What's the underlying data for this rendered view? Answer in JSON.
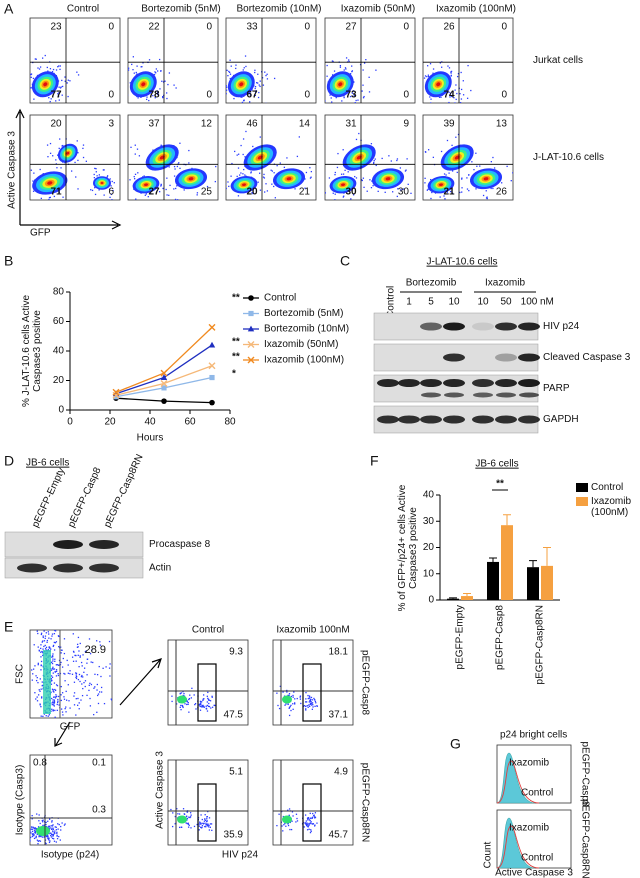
{
  "panel_letters": [
    "A",
    "B",
    "C",
    "D",
    "E",
    "F",
    "G"
  ],
  "panel_a": {
    "columns": [
      "Control",
      "Bortezomib (5nM)",
      "Bortezomib (10nM)",
      "Ixazomib (50nM)",
      "Ixazomib (100nM)"
    ],
    "rows": [
      {
        "label": "Jurkat cells",
        "quadrants": [
          [
            23,
            0,
            77,
            0
          ],
          [
            22,
            0,
            78,
            0
          ],
          [
            33,
            0,
            67,
            0
          ],
          [
            27,
            0,
            73,
            0
          ],
          [
            26,
            0,
            74,
            0
          ]
        ]
      },
      {
        "label": "J-LAT-10.6 cells",
        "quadrants": [
          [
            20,
            3,
            71,
            6
          ],
          [
            37,
            12,
            27,
            25
          ],
          [
            46,
            14,
            20,
            21
          ],
          [
            31,
            9,
            30,
            30
          ],
          [
            39,
            13,
            21,
            26
          ]
        ]
      }
    ],
    "y_axis_label": "Active Caspase 3",
    "x_axis_label": "GFP"
  },
  "chart_data": [
    {
      "type": "line",
      "y_label": "% J-LAT-10.6 cells Active Caspase3 positive",
      "x_label": "Hours",
      "x": [
        23,
        47,
        71
      ],
      "xlim": [
        0,
        80
      ],
      "xticks": [
        0,
        20,
        40,
        60,
        80
      ],
      "ylim": [
        0,
        80
      ],
      "yticks": [
        0,
        20,
        40,
        60,
        80
      ],
      "series": [
        {
          "name": "Control",
          "color": "#000000",
          "marker": "circle",
          "values": [
            8,
            6,
            5
          ]
        },
        {
          "name": "Bortezomib (5nM)",
          "color": "#8fb8e8",
          "marker": "square",
          "values": [
            9,
            15,
            22
          ]
        },
        {
          "name": "Bortezomib (10nM)",
          "color": "#1f2fc0",
          "marker": "triangle",
          "values": [
            11,
            22,
            44
          ]
        },
        {
          "name": "Ixazomib (50nM)",
          "color": "#f5b878",
          "marker": "cross",
          "values": [
            10,
            18,
            30
          ]
        },
        {
          "name": "Ixazomib (100nM)",
          "color": "#f08a20",
          "marker": "cross",
          "values": [
            12,
            25,
            56
          ]
        }
      ],
      "annotations": [
        "**",
        "**",
        "**",
        "*"
      ]
    },
    {
      "type": "bar",
      "title": "JB-6 cells",
      "y_label": "% of GFP+/p24+ cells Active Caspase3 positive",
      "categories": [
        "pEGFP-Empty",
        "pEGFP-Casp8",
        "pEGFP-Casp8RN"
      ],
      "ylim": [
        0,
        40
      ],
      "yticks": [
        0,
        10,
        20,
        30,
        40
      ],
      "series": [
        {
          "name": "Control",
          "color": "#000000",
          "values": [
            0.5,
            14.5,
            12.5
          ],
          "errors": [
            0.3,
            1.5,
            2.5
          ]
        },
        {
          "name": "Ixazomib (100nM)",
          "color": "#f5a040",
          "values": [
            1.5,
            28.5,
            13
          ],
          "errors": [
            1,
            4,
            7
          ]
        }
      ],
      "annotation": "**"
    }
  ],
  "panel_c": {
    "title": "J-LAT-10.6 cells",
    "control": "Control",
    "groups": [
      "Bortezomib",
      "Ixazomib"
    ],
    "lanes": [
      "1",
      "5",
      "10",
      "10",
      "50",
      "100"
    ],
    "unit": "nM",
    "bands": [
      "HIV p24",
      "Cleaved Caspase 3",
      "PARP",
      "GAPDH"
    ]
  },
  "panel_d": {
    "title": "JB-6 cells",
    "lanes": [
      "pEGFP-Empty",
      "pEGFP-Casp8",
      "pEGFP-Casp8RN"
    ],
    "bands": [
      "Procaspase 8",
      "Actin"
    ]
  },
  "panel_e": {
    "gate_plot": {
      "value": 28.9,
      "y_label": "FSC",
      "x_label": "GFP"
    },
    "isotype_plot": {
      "values": [
        0.8,
        0.1,
        0.3
      ],
      "y_label": "Isotype (Casp3)",
      "x_label": "Isotype (p24)"
    },
    "columns": [
      "Control",
      "Ixazomib 100nM"
    ],
    "rows": [
      {
        "label": "pEGFP-Casp8",
        "values": [
          [
            9.3,
            47.5
          ],
          [
            18.1,
            37.1
          ]
        ]
      },
      {
        "label": "pEGFP-Casp8RN",
        "values": [
          [
            5.1,
            35.9
          ],
          [
            4.9,
            45.7
          ]
        ]
      }
    ],
    "y_label": "Active Caspase 3",
    "x_label": "HIV p24"
  },
  "panel_g": {
    "title": "p24 bright cells",
    "rows": [
      "pEGFP-Casp8",
      "pEGFP-Casp8RN"
    ],
    "treated": "Ixazomib",
    "control": "Control",
    "y_label": "Count",
    "x_label": "Active Caspase 3"
  }
}
